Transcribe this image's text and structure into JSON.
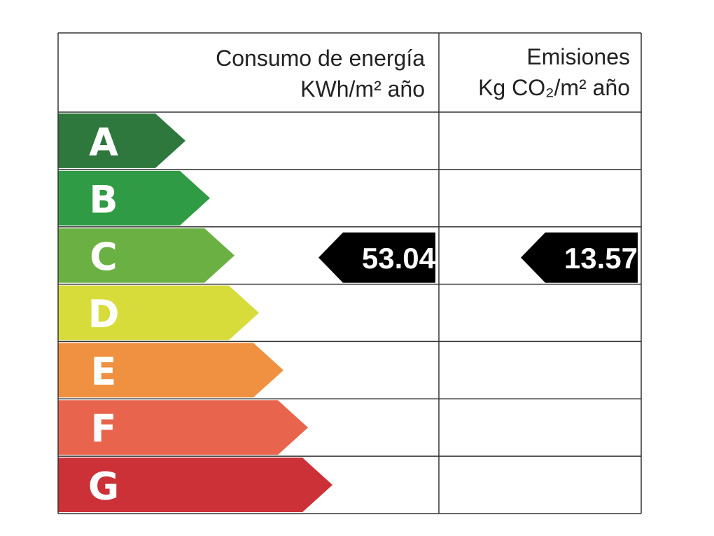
{
  "header": {
    "consumption": {
      "line1": "Consumo de energía",
      "line2": "KWh/m² año"
    },
    "emissions": {
      "line1": "Emisiones",
      "line2": "Kg CO₂/m² año"
    }
  },
  "rows": [
    {
      "letter": "A",
      "color": "#2e773d"
    },
    {
      "letter": "B",
      "color": "#2f9b45"
    },
    {
      "letter": "C",
      "color": "#6bb043",
      "energy": 53.04,
      "emissions": 13.57
    },
    {
      "letter": "D",
      "color": "#d7dc3b"
    },
    {
      "letter": "E",
      "color": "#ef9140"
    },
    {
      "letter": "F",
      "color": "#e8644c"
    },
    {
      "letter": "G",
      "color": "#cb3137"
    }
  ]
}
